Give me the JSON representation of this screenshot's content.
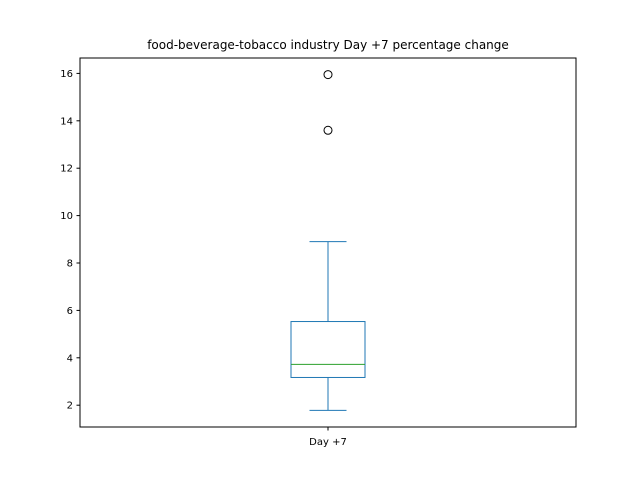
{
  "chart_data": {
    "type": "box",
    "title": "food-beverage-tobacco industry Day +7 percentage change",
    "xlabel": "",
    "ylabel": "",
    "categories": [
      "Day +7"
    ],
    "boxes": [
      {
        "label": "Day +7",
        "whisker_low": 1.78,
        "q1": 3.17,
        "median": 3.72,
        "q3": 5.53,
        "whisker_high": 8.9,
        "outliers": [
          13.6,
          15.95
        ]
      }
    ],
    "ylim": [
      1.08,
      16.65
    ],
    "yticks": [
      2,
      4,
      6,
      8,
      10,
      12,
      14,
      16
    ],
    "grid": false,
    "colors": {
      "box": "#1f77b4",
      "median": "#2ca02c",
      "outlier_edge": "#000000"
    }
  }
}
